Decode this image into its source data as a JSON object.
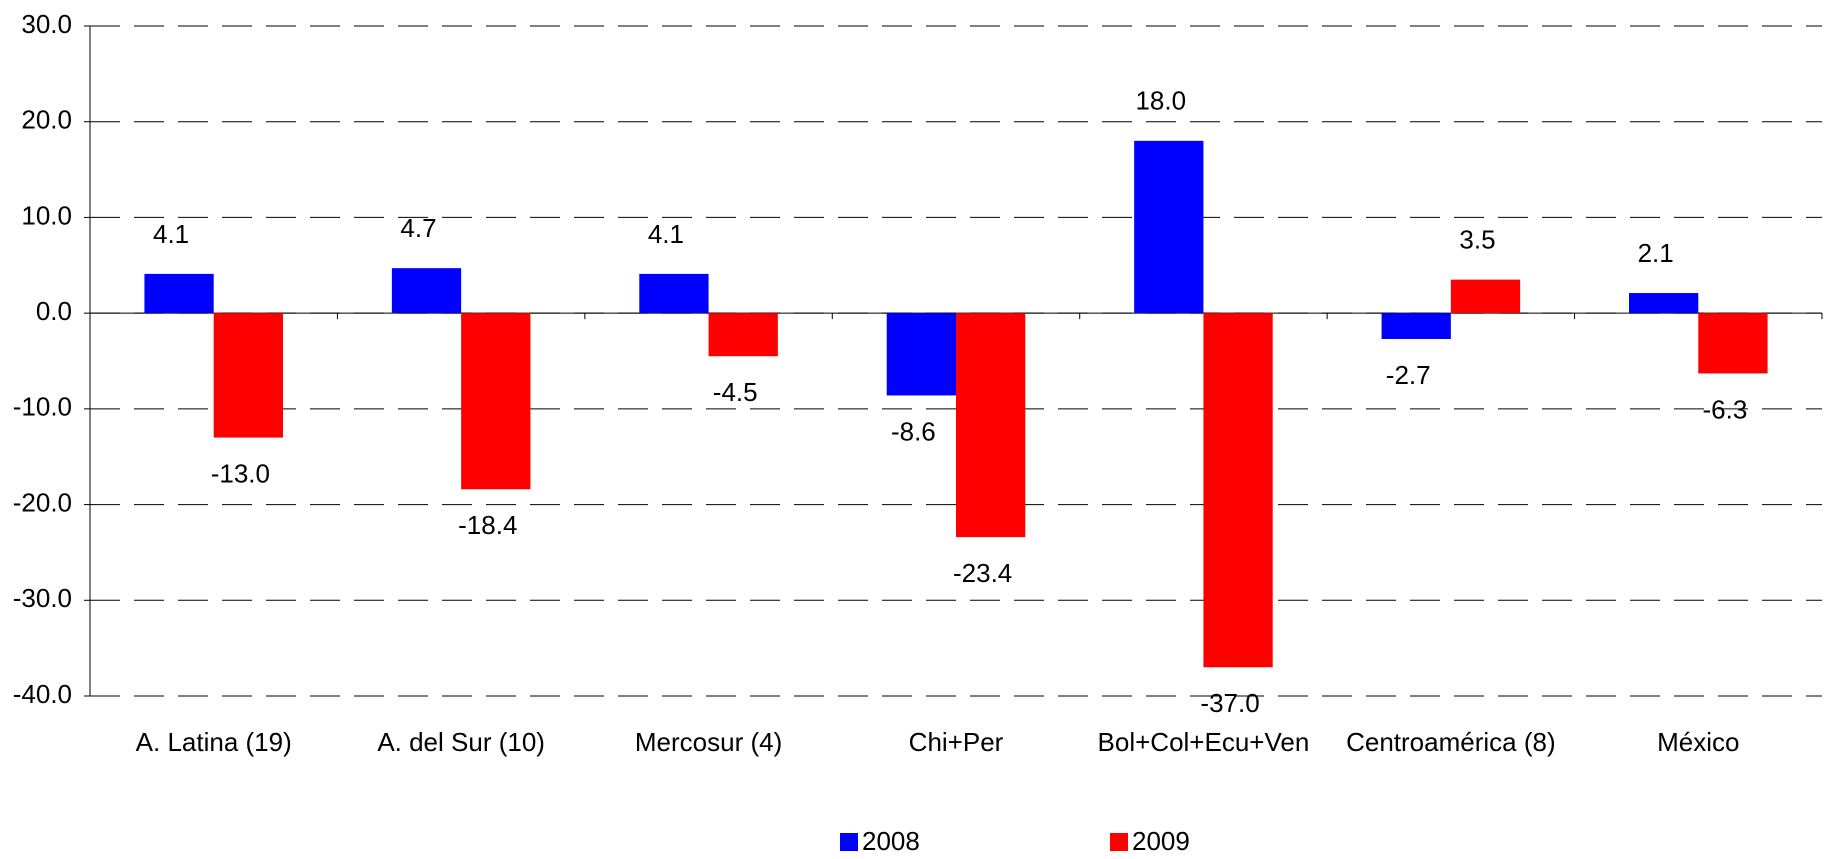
{
  "chart_data": {
    "type": "bar",
    "categories": [
      "A. Latina (19)",
      "A. del Sur (10)",
      "Mercosur (4)",
      "Chi+Per",
      "Bol+Col+Ecu+Ven",
      "Centroamérica (8)",
      "México"
    ],
    "series": [
      {
        "name": "2008",
        "color": "#0000ff",
        "values": [
          4.1,
          4.7,
          4.1,
          -8.6,
          18.0,
          -2.7,
          2.1
        ],
        "value_labels": [
          "4.1",
          "4.7",
          "4.1",
          "-8.6",
          "18.0",
          "-2.7",
          "2.1"
        ]
      },
      {
        "name": "2009",
        "color": "#ff0000",
        "values": [
          -13.0,
          -18.4,
          -4.5,
          -23.4,
          -37.0,
          3.5,
          -6.3
        ],
        "value_labels": [
          "-13.0",
          "-18.4",
          "-4.5",
          "-23.4",
          "-37.0",
          "3.5",
          "-6.3"
        ]
      }
    ],
    "ylim": [
      -40,
      30
    ],
    "yticks": [
      {
        "value": -40,
        "label": "-40.0"
      },
      {
        "value": -30,
        "label": "-30.0"
      },
      {
        "value": -20,
        "label": "-20.0"
      },
      {
        "value": -10,
        "label": "-10.0"
      },
      {
        "value": 0,
        "label": "0.0"
      },
      {
        "value": 10,
        "label": "10.0"
      },
      {
        "value": 20,
        "label": "20.0"
      },
      {
        "value": 30,
        "label": "30.0"
      }
    ],
    "grid": true,
    "legend": "bottom"
  }
}
